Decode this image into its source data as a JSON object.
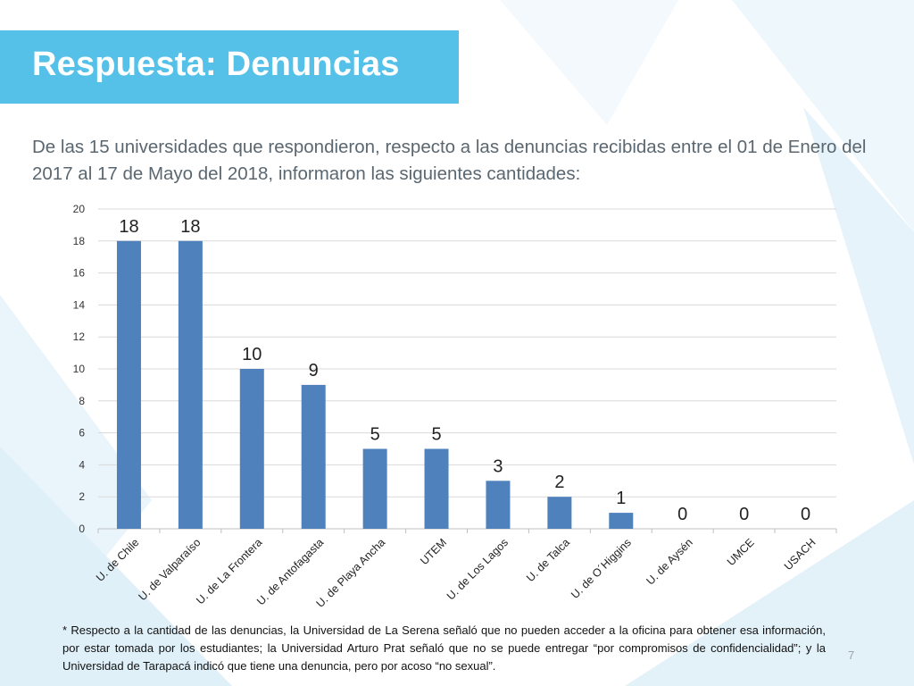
{
  "slide": {
    "title": "Respuesta: Denuncias",
    "intro": "De las 15 universidades que respondieron, respecto a las denuncias recibidas entre el 01 de Enero del 2017 al 17 de Mayo del 2018, informaron las siguientes cantidades:",
    "footnote": "* Respecto a la cantidad de las denuncias, la Universidad de La Serena señaló que no pueden acceder a la oficina para obtener esa información, por estar tomada por los estudiantes; la Universidad Arturo Prat señaló que no se puede entregar “por compromisos de confidencialidad”; y la Universidad de Tarapacá indicó que tiene una denuncia, pero por acoso “no sexual”.",
    "page_number": "7"
  },
  "colors": {
    "title_bar": "#56c1e8",
    "bar": "#4f81bd",
    "grid": "#d9d9d9"
  },
  "chart_data": {
    "type": "bar",
    "title": "",
    "xlabel": "",
    "ylabel": "",
    "categories": [
      "U. de Chile",
      "U. de Valparaíso",
      "U. de La Frontera",
      "U. de Antofagasta",
      "U. de Playa Ancha",
      "UTEM",
      "U. de Los Lagos",
      "U. de Talca",
      "U. de O´Higgins",
      "U. de Aysén",
      "UMCE",
      "USACH"
    ],
    "values": [
      18,
      18,
      10,
      9,
      5,
      5,
      3,
      2,
      1,
      0,
      0,
      0
    ],
    "ylim": [
      0,
      20
    ],
    "yticks": [
      0,
      2,
      4,
      6,
      8,
      10,
      12,
      14,
      16,
      18,
      20
    ],
    "grid": true,
    "legend": "none",
    "data_labels": true
  }
}
